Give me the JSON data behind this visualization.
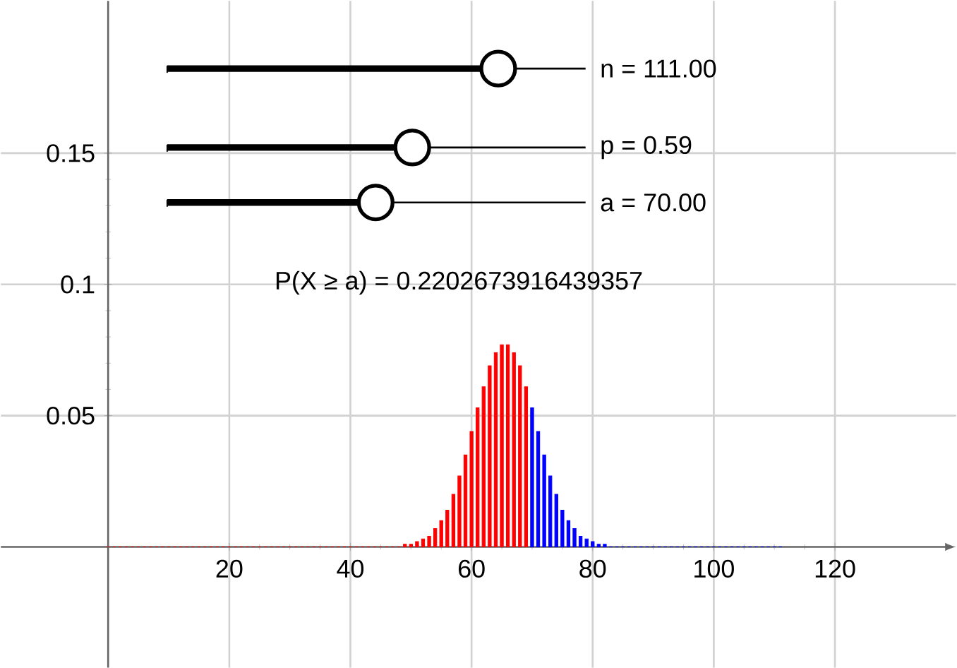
{
  "chart_data": {
    "type": "bar",
    "series": [
      {
        "color": "#ff0000",
        "x": [
          0,
          1,
          2,
          3,
          4,
          5,
          6,
          7,
          8,
          9,
          10,
          11,
          12,
          13,
          14,
          15,
          16,
          17,
          18,
          19,
          20,
          21,
          22,
          23,
          24,
          25,
          26,
          27,
          28,
          29,
          30,
          31,
          32,
          33,
          34,
          35,
          36,
          37,
          38,
          39,
          40,
          41,
          42,
          43,
          44,
          45,
          46,
          47,
          48,
          49,
          50,
          51,
          52,
          53,
          54,
          55,
          56,
          57,
          58,
          59,
          60,
          61,
          62,
          63,
          64,
          65,
          66,
          67,
          68,
          69
        ],
        "values": [
          0,
          0,
          0,
          0,
          0,
          0,
          0,
          0,
          0,
          0,
          0,
          0,
          0,
          0,
          0,
          0,
          0,
          0,
          0,
          0,
          0,
          0,
          0,
          0,
          0,
          0,
          0,
          0,
          0,
          0,
          0,
          0,
          0,
          0,
          0,
          0,
          0,
          0,
          0,
          0,
          0,
          0,
          0,
          0,
          0,
          0,
          0,
          0,
          0,
          0.001,
          0.001,
          0.002,
          0.003,
          0.004,
          0.007,
          0.01,
          0.014,
          0.02,
          0.027,
          0.035,
          0.044,
          0.053,
          0.061,
          0.069,
          0.074,
          0.077,
          0.077,
          0.074,
          0.069,
          0.061
        ]
      },
      {
        "color": "#0000ff",
        "x": [
          70,
          71,
          72,
          73,
          74,
          75,
          76,
          77,
          78,
          79,
          80,
          81,
          82,
          83,
          84,
          85,
          86,
          87,
          88,
          89,
          90,
          91,
          92,
          93,
          94,
          95,
          96,
          97,
          98,
          99,
          100,
          101,
          102,
          103,
          104,
          105,
          106,
          107,
          108,
          109,
          110,
          111
        ],
        "values": [
          0.053,
          0.044,
          0.035,
          0.027,
          0.02,
          0.014,
          0.01,
          0.007,
          0.004,
          0.003,
          0.002,
          0.001,
          0.001,
          0,
          0,
          0,
          0,
          0,
          0,
          0,
          0,
          0,
          0,
          0,
          0,
          0,
          0,
          0,
          0,
          0,
          0,
          0,
          0,
          0,
          0,
          0,
          0,
          0,
          0,
          0,
          0,
          0
        ]
      }
    ],
    "xlim": [
      -17.7,
      140
    ],
    "ylim": [
      -0.046,
      0.208
    ],
    "xticks": [
      20,
      40,
      60,
      80,
      100,
      120
    ],
    "yticks": [
      0.05,
      0.1,
      0.15
    ],
    "grid": true,
    "annotations": [
      "n = 111.00",
      "p = 0.59",
      "a = 70.00",
      "P(X ≥ a) = 0.2202673916439357"
    ]
  }
}
